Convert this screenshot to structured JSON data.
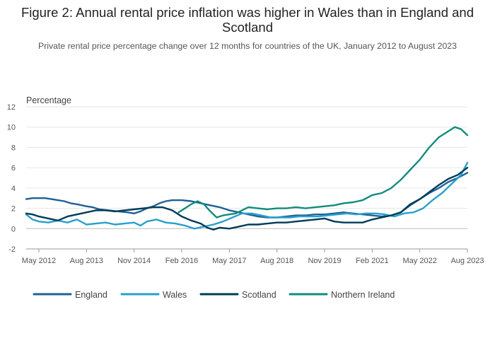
{
  "chart_data": {
    "type": "line",
    "title": "Figure 2: Annual rental price inflation was higher in Wales than in England and Scotland",
    "subtitle": "Private rental price percentage change over 12 months for countries of the UK, January 2012 to August 2023",
    "ylabel": "Percentage",
    "xlabel": "",
    "ylim": [
      -2,
      12
    ],
    "yticks": [
      "12",
      "10",
      "8",
      "6",
      "4",
      "2",
      "0",
      "-2"
    ],
    "xlim": [
      "2012-01",
      "2023-08"
    ],
    "xticks": [
      {
        "date": "2012-05",
        "label": "May 2012"
      },
      {
        "date": "2013-08",
        "label": "Aug 2013"
      },
      {
        "date": "2014-11",
        "label": "Nov 2014"
      },
      {
        "date": "2016-02",
        "label": "Feb 2016"
      },
      {
        "date": "2017-05",
        "label": "May 2017"
      },
      {
        "date": "2018-08",
        "label": "Aug 2018"
      },
      {
        "date": "2019-11",
        "label": "Nov 2019"
      },
      {
        "date": "2021-02",
        "label": "Feb 2021"
      },
      {
        "date": "2022-05",
        "label": "May 2022"
      },
      {
        "date": "2023-08",
        "label": "Aug 2023"
      }
    ],
    "grid": true,
    "legend_position": "bottom",
    "series": [
      {
        "name": "England",
        "color": "#206095",
        "points": [
          [
            "2012-01",
            2.9
          ],
          [
            "2012-03",
            3.0
          ],
          [
            "2012-05",
            3.0
          ],
          [
            "2012-07",
            3.0
          ],
          [
            "2012-09",
            2.9
          ],
          [
            "2012-11",
            2.8
          ],
          [
            "2013-01",
            2.7
          ],
          [
            "2013-03",
            2.5
          ],
          [
            "2013-05",
            2.4
          ],
          [
            "2013-08",
            2.2
          ],
          [
            "2013-10",
            2.1
          ],
          [
            "2013-12",
            1.9
          ],
          [
            "2014-03",
            1.8
          ],
          [
            "2014-06",
            1.7
          ],
          [
            "2014-09",
            1.6
          ],
          [
            "2014-11",
            1.5
          ],
          [
            "2015-01",
            1.7
          ],
          [
            "2015-03",
            2.0
          ],
          [
            "2015-05",
            2.2
          ],
          [
            "2015-07",
            2.5
          ],
          [
            "2015-09",
            2.7
          ],
          [
            "2015-11",
            2.8
          ],
          [
            "2016-02",
            2.8
          ],
          [
            "2016-05",
            2.7
          ],
          [
            "2016-08",
            2.5
          ],
          [
            "2016-11",
            2.3
          ],
          [
            "2017-02",
            2.1
          ],
          [
            "2017-05",
            1.8
          ],
          [
            "2017-08",
            1.6
          ],
          [
            "2017-11",
            1.4
          ],
          [
            "2018-02",
            1.2
          ],
          [
            "2018-05",
            1.1
          ],
          [
            "2018-08",
            1.1
          ],
          [
            "2018-11",
            1.2
          ],
          [
            "2019-02",
            1.3
          ],
          [
            "2019-05",
            1.3
          ],
          [
            "2019-08",
            1.4
          ],
          [
            "2019-11",
            1.4
          ],
          [
            "2020-02",
            1.5
          ],
          [
            "2020-05",
            1.6
          ],
          [
            "2020-08",
            1.5
          ],
          [
            "2020-11",
            1.4
          ],
          [
            "2021-02",
            1.3
          ],
          [
            "2021-05",
            1.2
          ],
          [
            "2021-08",
            1.3
          ],
          [
            "2021-11",
            1.6
          ],
          [
            "2022-02",
            2.3
          ],
          [
            "2022-05",
            2.9
          ],
          [
            "2022-08",
            3.5
          ],
          [
            "2022-11",
            4.0
          ],
          [
            "2023-02",
            4.6
          ],
          [
            "2023-05",
            5.0
          ],
          [
            "2023-08",
            5.5
          ]
        ]
      },
      {
        "name": "Wales",
        "color": "#27a0cc",
        "points": [
          [
            "2012-01",
            1.4
          ],
          [
            "2012-03",
            0.9
          ],
          [
            "2012-05",
            0.7
          ],
          [
            "2012-08",
            0.6
          ],
          [
            "2012-11",
            0.8
          ],
          [
            "2013-02",
            0.6
          ],
          [
            "2013-05",
            0.9
          ],
          [
            "2013-08",
            0.4
          ],
          [
            "2013-11",
            0.5
          ],
          [
            "2014-02",
            0.6
          ],
          [
            "2014-05",
            0.4
          ],
          [
            "2014-08",
            0.5
          ],
          [
            "2014-11",
            0.6
          ],
          [
            "2015-01",
            0.3
          ],
          [
            "2015-03",
            0.7
          ],
          [
            "2015-06",
            0.9
          ],
          [
            "2015-09",
            0.6
          ],
          [
            "2015-12",
            0.5
          ],
          [
            "2016-03",
            0.3
          ],
          [
            "2016-06",
            0.0
          ],
          [
            "2016-09",
            0.2
          ],
          [
            "2016-12",
            0.4
          ],
          [
            "2017-03",
            0.7
          ],
          [
            "2017-06",
            1.1
          ],
          [
            "2017-09",
            1.5
          ],
          [
            "2017-12",
            1.5
          ],
          [
            "2018-03",
            1.3
          ],
          [
            "2018-06",
            1.1
          ],
          [
            "2018-09",
            1.1
          ],
          [
            "2018-12",
            1.1
          ],
          [
            "2019-03",
            1.2
          ],
          [
            "2019-06",
            1.2
          ],
          [
            "2019-09",
            1.2
          ],
          [
            "2019-12",
            1.3
          ],
          [
            "2020-03",
            1.4
          ],
          [
            "2020-06",
            1.5
          ],
          [
            "2020-09",
            1.4
          ],
          [
            "2020-12",
            1.5
          ],
          [
            "2021-03",
            1.5
          ],
          [
            "2021-06",
            1.4
          ],
          [
            "2021-09",
            1.2
          ],
          [
            "2021-12",
            1.5
          ],
          [
            "2022-03",
            1.6
          ],
          [
            "2022-06",
            2.0
          ],
          [
            "2022-09",
            2.8
          ],
          [
            "2022-12",
            3.5
          ],
          [
            "2023-03",
            4.4
          ],
          [
            "2023-06",
            5.3
          ],
          [
            "2023-08",
            6.5
          ]
        ]
      },
      {
        "name": "Scotland",
        "color": "#003c57",
        "points": [
          [
            "2012-01",
            1.5
          ],
          [
            "2012-03",
            1.4
          ],
          [
            "2012-05",
            1.2
          ],
          [
            "2012-08",
            1.0
          ],
          [
            "2012-11",
            0.8
          ],
          [
            "2013-02",
            1.2
          ],
          [
            "2013-05",
            1.4
          ],
          [
            "2013-08",
            1.6
          ],
          [
            "2013-11",
            1.8
          ],
          [
            "2014-02",
            1.8
          ],
          [
            "2014-05",
            1.7
          ],
          [
            "2014-08",
            1.8
          ],
          [
            "2014-11",
            1.9
          ],
          [
            "2015-02",
            2.0
          ],
          [
            "2015-05",
            2.1
          ],
          [
            "2015-08",
            2.1
          ],
          [
            "2015-11",
            1.8
          ],
          [
            "2016-02",
            1.2
          ],
          [
            "2016-05",
            0.8
          ],
          [
            "2016-08",
            0.5
          ],
          [
            "2016-10",
            0.1
          ],
          [
            "2016-12",
            -0.1
          ],
          [
            "2017-02",
            0.1
          ],
          [
            "2017-05",
            0.0
          ],
          [
            "2017-08",
            0.2
          ],
          [
            "2017-11",
            0.4
          ],
          [
            "2018-02",
            0.4
          ],
          [
            "2018-05",
            0.5
          ],
          [
            "2018-08",
            0.6
          ],
          [
            "2018-11",
            0.6
          ],
          [
            "2019-02",
            0.7
          ],
          [
            "2019-05",
            0.8
          ],
          [
            "2019-08",
            0.9
          ],
          [
            "2019-11",
            1.0
          ],
          [
            "2020-02",
            0.7
          ],
          [
            "2020-05",
            0.6
          ],
          [
            "2020-08",
            0.6
          ],
          [
            "2020-11",
            0.6
          ],
          [
            "2021-02",
            0.9
          ],
          [
            "2021-05",
            1.1
          ],
          [
            "2021-08",
            1.3
          ],
          [
            "2021-11",
            1.6
          ],
          [
            "2022-02",
            2.4
          ],
          [
            "2022-05",
            2.9
          ],
          [
            "2022-08",
            3.6
          ],
          [
            "2022-11",
            4.3
          ],
          [
            "2023-02",
            4.9
          ],
          [
            "2023-05",
            5.3
          ],
          [
            "2023-08",
            6.0
          ]
        ]
      },
      {
        "name": "Northern Ireland",
        "color": "#118c7b",
        "points": [
          [
            "2016-01",
            1.6
          ],
          [
            "2016-03",
            2.0
          ],
          [
            "2016-05",
            2.4
          ],
          [
            "2016-07",
            2.7
          ],
          [
            "2016-09",
            2.4
          ],
          [
            "2016-11",
            1.7
          ],
          [
            "2017-01",
            1.1
          ],
          [
            "2017-03",
            1.3
          ],
          [
            "2017-05",
            1.4
          ],
          [
            "2017-07",
            1.5
          ],
          [
            "2017-09",
            1.8
          ],
          [
            "2017-11",
            2.1
          ],
          [
            "2018-02",
            2.0
          ],
          [
            "2018-05",
            1.9
          ],
          [
            "2018-08",
            2.0
          ],
          [
            "2018-11",
            2.0
          ],
          [
            "2019-02",
            2.1
          ],
          [
            "2019-05",
            2.0
          ],
          [
            "2019-08",
            2.1
          ],
          [
            "2019-11",
            2.2
          ],
          [
            "2020-02",
            2.3
          ],
          [
            "2020-05",
            2.5
          ],
          [
            "2020-08",
            2.6
          ],
          [
            "2020-11",
            2.8
          ],
          [
            "2021-02",
            3.3
          ],
          [
            "2021-05",
            3.5
          ],
          [
            "2021-08",
            4.0
          ],
          [
            "2021-11",
            4.8
          ],
          [
            "2022-02",
            5.8
          ],
          [
            "2022-05",
            6.8
          ],
          [
            "2022-08",
            8.0
          ],
          [
            "2022-11",
            9.0
          ],
          [
            "2023-02",
            9.6
          ],
          [
            "2023-04",
            10.0
          ],
          [
            "2023-06",
            9.8
          ],
          [
            "2023-08",
            9.2
          ]
        ]
      }
    ]
  }
}
